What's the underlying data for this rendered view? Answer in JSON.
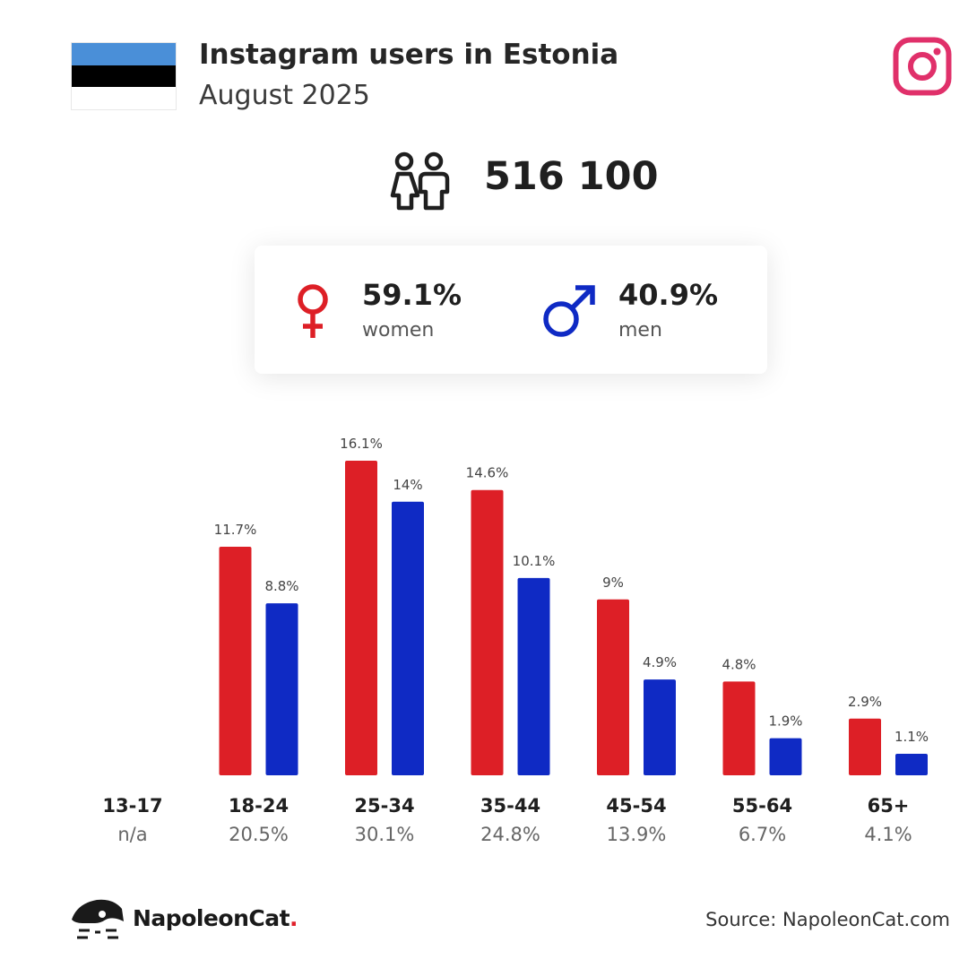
{
  "header": {
    "title": "Instagram users in Estonia",
    "subtitle": "August 2025"
  },
  "total": "516 100",
  "gender": {
    "women_pct": "59.1%",
    "women_label": "women",
    "men_pct": "40.9%",
    "men_label": "men"
  },
  "colors": {
    "women": "#dd1f26",
    "men": "#0f2ac4",
    "flag_blue": "#4a8fd8",
    "flag_black": "#000000",
    "flag_white": "#ffffff",
    "instagram": "#e0306a"
  },
  "chart_data": {
    "type": "bar",
    "categories": [
      "13-17",
      "18-24",
      "25-34",
      "35-44",
      "45-54",
      "55-64",
      "65+"
    ],
    "category_totals": [
      "n/a",
      "20.5%",
      "30.1%",
      "24.8%",
      "13.9%",
      "6.7%",
      "4.1%"
    ],
    "series": [
      {
        "values": [
          null,
          11.7,
          16.1,
          14.6,
          9,
          4.8,
          2.9
        ],
        "labels": [
          "",
          "11.7%",
          "16.1%",
          "14.6%",
          "9%",
          "4.8%",
          "2.9%"
        ]
      },
      {
        "values": [
          null,
          8.8,
          14,
          10.1,
          4.9,
          1.9,
          1.1
        ],
        "labels": [
          "",
          "8.8%",
          "14%",
          "10.1%",
          "4.9%",
          "1.9%",
          "1.1%"
        ]
      }
    ]
  },
  "footer": {
    "brand": "NapoleonCat",
    "brand_dot": ".",
    "source": "Source: NapoleonCat.com"
  },
  "icons": {
    "users": "users-icon",
    "instagram": "instagram-icon",
    "female": "female-icon",
    "male": "male-icon",
    "logo": "napoleoncat-logo-icon"
  }
}
